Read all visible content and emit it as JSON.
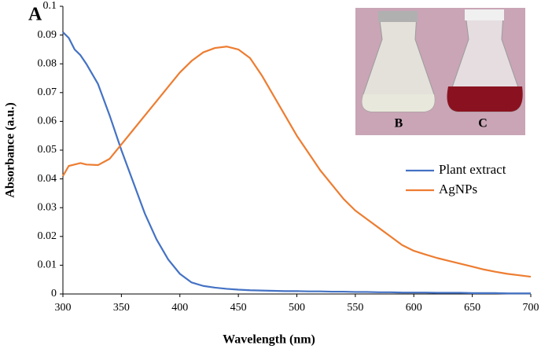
{
  "chart_data": {
    "type": "line",
    "panel_label": "A",
    "inset_labels": [
      "B",
      "C"
    ],
    "xlabel": "Wavelength (nm)",
    "ylabel": "Absorbance (a.u.)",
    "x": [
      300,
      305,
      310,
      315,
      320,
      330,
      340,
      350,
      360,
      370,
      380,
      390,
      400,
      410,
      420,
      430,
      440,
      450,
      460,
      470,
      480,
      490,
      500,
      510,
      520,
      530,
      540,
      550,
      560,
      570,
      580,
      590,
      600,
      610,
      620,
      630,
      640,
      650,
      660,
      670,
      680,
      690,
      700
    ],
    "series": [
      {
        "name": "Plant extract",
        "color": "#4472c4",
        "values": [
          0.091,
          0.089,
          0.085,
          0.083,
          0.08,
          0.073,
          0.062,
          0.05,
          0.039,
          0.028,
          0.019,
          0.012,
          0.007,
          0.004,
          0.0028,
          0.0022,
          0.0018,
          0.0015,
          0.0013,
          0.0012,
          0.0011,
          0.001,
          0.001,
          0.0009,
          0.0009,
          0.0008,
          0.0008,
          0.0007,
          0.0007,
          0.0006,
          0.0006,
          0.0005,
          0.0005,
          0.0005,
          0.0004,
          0.0004,
          0.0004,
          0.0003,
          0.0003,
          0.0003,
          0.0002,
          0.0002,
          0.0002
        ]
      },
      {
        "name": "AgNPs",
        "color": "#ed7d31",
        "values": [
          0.041,
          0.0445,
          0.045,
          0.0455,
          0.045,
          0.0448,
          0.047,
          0.052,
          0.057,
          0.062,
          0.067,
          0.072,
          0.077,
          0.081,
          0.084,
          0.0855,
          0.086,
          0.085,
          0.082,
          0.076,
          0.069,
          0.062,
          0.055,
          0.049,
          0.043,
          0.038,
          0.033,
          0.029,
          0.026,
          0.023,
          0.02,
          0.017,
          0.015,
          0.0137,
          0.0125,
          0.0115,
          0.0105,
          0.0095,
          0.0085,
          0.0077,
          0.007,
          0.0065,
          0.006
        ]
      }
    ],
    "xlim": [
      300,
      700
    ],
    "xticks": [
      300,
      350,
      400,
      450,
      500,
      550,
      600,
      650,
      700
    ],
    "ylim": [
      0,
      0.1
    ],
    "yticks": [
      0,
      0.01,
      0.02,
      0.03,
      0.04,
      0.05,
      0.06,
      0.07,
      0.08,
      0.09,
      0.1
    ]
  }
}
